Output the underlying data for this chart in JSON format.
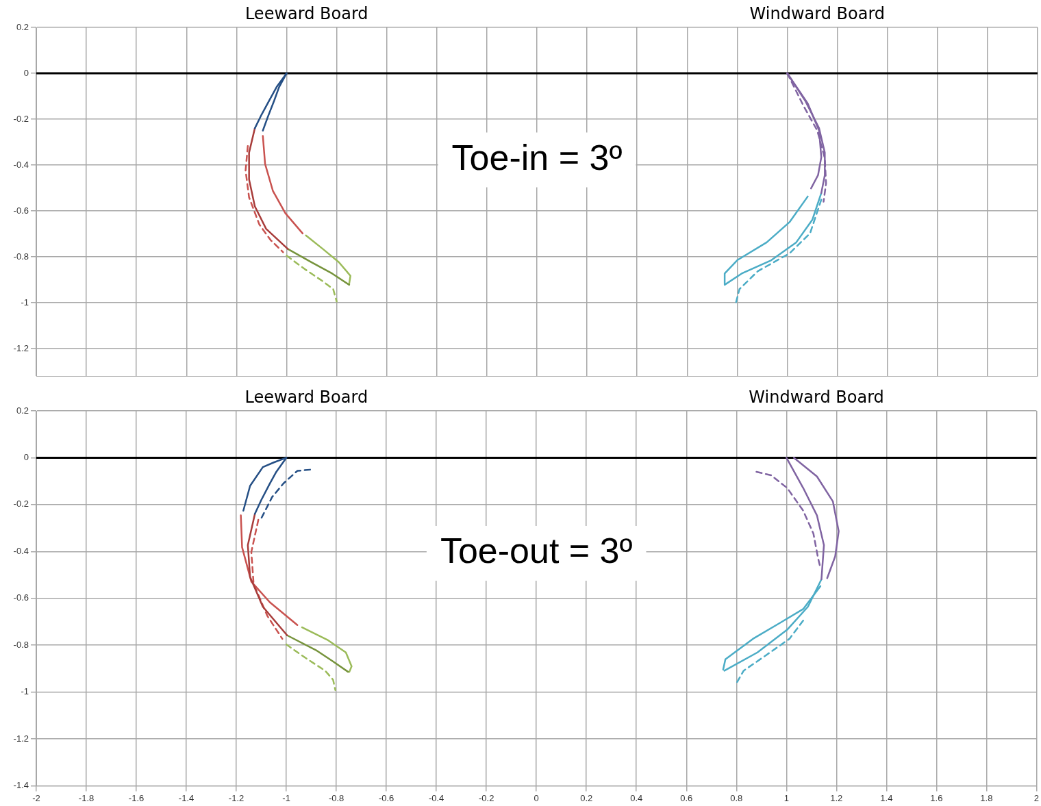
{
  "chart_data": [
    {
      "type": "line",
      "marker": "none",
      "grid": true,
      "legend": false,
      "tick_labels": "y",
      "xlim": [
        -2,
        2
      ],
      "ylim": [
        -1.32,
        0.2
      ],
      "xticks": [
        -2,
        -1.8,
        -1.6,
        -1.4,
        -1.2,
        -1,
        -0.8,
        -0.6,
        -0.4,
        -0.2,
        0,
        0.2,
        0.4,
        0.6,
        0.8,
        1,
        1.2,
        1.4,
        1.6,
        1.8,
        2
      ],
      "yticks": [
        0.2,
        0,
        -0.2,
        -0.4,
        -0.6,
        -0.8,
        -1,
        -1.2
      ],
      "ref_lines": [
        {
          "axis": "y",
          "value": 0,
          "color": "#000000"
        }
      ],
      "annotations": [
        "Leeward Board",
        "Windward Board",
        "Toe-in = 3º"
      ],
      "series": [
        {
          "color": "#254f85",
          "line_style": "solid",
          "x": [
            -1.0,
            -1.04,
            -1.07,
            -1.1,
            -1.127
          ],
          "values": [
            0,
            -0.06,
            -0.12,
            -0.18,
            -0.24
          ]
        },
        {
          "color": "#254f85",
          "line_style": "solid",
          "x": [
            -1.0,
            -1.03,
            -1.05,
            -1.075,
            -1.095
          ],
          "values": [
            0,
            -0.06,
            -0.12,
            -0.19,
            -0.25
          ]
        },
        {
          "color": "#a83c3a",
          "line_style": "solid",
          "x": [
            -1.127,
            -1.15,
            -1.15,
            -1.127,
            -1.082,
            -0.995
          ],
          "values": [
            -0.24,
            -0.346,
            -0.463,
            -0.58,
            -0.678,
            -0.766
          ]
        },
        {
          "color": "#c9524f",
          "line_style": "solid",
          "x": [
            -1.095,
            -1.086,
            -1.055,
            -1.005,
            -0.936
          ],
          "values": [
            -0.273,
            -0.395,
            -0.512,
            -0.61,
            -0.698
          ]
        },
        {
          "color": "#c9524f",
          "line_style": "dashed",
          "x": [
            -1.155,
            -1.164,
            -1.15,
            -1.109,
            -1.064,
            -1.014
          ],
          "values": [
            -0.317,
            -0.424,
            -0.541,
            -0.659,
            -0.727,
            -0.78
          ]
        },
        {
          "color": "#76933c",
          "line_style": "solid",
          "x": [
            -0.995,
            -0.9,
            -0.818,
            -0.75
          ],
          "values": [
            -0.766,
            -0.824,
            -0.873,
            -0.922
          ]
        },
        {
          "color": "#9bbb59",
          "line_style": "solid",
          "x": [
            -0.923,
            -0.855,
            -0.791,
            -0.745,
            -0.75
          ],
          "values": [
            -0.707,
            -0.766,
            -0.824,
            -0.883,
            -0.917
          ]
        },
        {
          "color": "#9bbb59",
          "line_style": "dashed",
          "x": [
            -1.0,
            -0.927,
            -0.855,
            -0.814,
            -0.8
          ],
          "values": [
            -0.795,
            -0.854,
            -0.907,
            -0.941,
            -0.995
          ]
        },
        {
          "color": "#8064a2",
          "line_style": "solid",
          "x": [
            1.0,
            1.073,
            1.127,
            1.15,
            1.15,
            1.136
          ],
          "values": [
            0,
            -0.122,
            -0.239,
            -0.346,
            -0.444,
            -0.522
          ]
        },
        {
          "color": "#8064a2",
          "line_style": "solid",
          "x": [
            1.0,
            1.082,
            1.127,
            1.136,
            1.123,
            1.095
          ],
          "values": [
            0,
            -0.132,
            -0.249,
            -0.366,
            -0.444,
            -0.502
          ]
        },
        {
          "color": "#8064a2",
          "line_style": "dashed",
          "x": [
            1.0,
            1.064,
            1.12,
            1.15,
            1.155,
            1.145
          ],
          "values": [
            0,
            -0.14,
            -0.25,
            -0.37,
            -0.48,
            -0.56
          ]
        },
        {
          "color": "#4bacc6",
          "line_style": "solid",
          "x": [
            1.136,
            1.1,
            1.036,
            0.936,
            0.818,
            0.75
          ],
          "values": [
            -0.522,
            -0.639,
            -0.737,
            -0.815,
            -0.873,
            -0.922
          ]
        },
        {
          "color": "#4bacc6",
          "line_style": "solid",
          "x": [
            1.082,
            1.009,
            0.918,
            0.8,
            0.75,
            0.75
          ],
          "values": [
            -0.537,
            -0.649,
            -0.737,
            -0.815,
            -0.873,
            -0.917
          ]
        },
        {
          "color": "#4bacc6",
          "line_style": "dashed",
          "x": [
            1.136,
            1.091,
            1.009,
            0.882,
            0.809,
            0.795
          ],
          "values": [
            -0.551,
            -0.698,
            -0.785,
            -0.863,
            -0.941,
            -1.0
          ]
        }
      ]
    },
    {
      "type": "line",
      "marker": "none",
      "grid": true,
      "legend": false,
      "xlim": [
        -2,
        2
      ],
      "ylim": [
        -1.4,
        0.2
      ],
      "xticks": [
        -2,
        -1.8,
        -1.6,
        -1.4,
        -1.2,
        -1,
        -0.8,
        -0.6,
        -0.4,
        -0.2,
        0,
        0.2,
        0.4,
        0.6,
        0.8,
        1,
        1.2,
        1.4,
        1.6,
        1.8,
        2
      ],
      "yticks": [
        0.2,
        0,
        -0.2,
        -0.4,
        -0.6,
        -0.8,
        -1,
        -1.2,
        -1.4
      ],
      "ref_lines": [
        {
          "axis": "y",
          "value": 0,
          "color": "#000000"
        }
      ],
      "annotations": [
        "Leeward Board",
        "Windward Board",
        "Toe-out = 3º"
      ],
      "series": [
        {
          "color": "#254f85",
          "line_style": "solid",
          "x": [
            -1.0,
            -1.04,
            -1.066,
            -1.1,
            -1.126
          ],
          "values": [
            0,
            -0.06,
            -0.11,
            -0.18,
            -0.24
          ]
        },
        {
          "color": "#254f85",
          "line_style": "solid",
          "x": [
            -1.0,
            -1.05,
            -1.094,
            -1.145,
            -1.172
          ],
          "values": [
            0,
            -0.02,
            -0.04,
            -0.12,
            -0.226
          ]
        },
        {
          "color": "#254f85",
          "line_style": "dashed",
          "x": [
            -0.905,
            -0.956,
            -1.011,
            -1.057,
            -1.099
          ],
          "values": [
            -0.051,
            -0.056,
            -0.109,
            -0.168,
            -0.256
          ]
        },
        {
          "color": "#a83c3a",
          "line_style": "solid",
          "x": [
            -1.126,
            -1.154,
            -1.145,
            -1.094,
            -0.997
          ],
          "values": [
            -0.241,
            -0.373,
            -0.509,
            -0.636,
            -0.758
          ]
        },
        {
          "color": "#c9524f",
          "line_style": "solid",
          "x": [
            -1.182,
            -1.177,
            -1.14,
            -1.066,
            -0.956
          ],
          "values": [
            -0.246,
            -0.382,
            -0.529,
            -0.617,
            -0.714
          ]
        },
        {
          "color": "#c9524f",
          "line_style": "dashed",
          "x": [
            -1.112,
            -1.14,
            -1.131,
            -1.076,
            -1.016
          ],
          "values": [
            -0.265,
            -0.402,
            -0.538,
            -0.675,
            -0.773
          ]
        },
        {
          "color": "#76933c",
          "line_style": "solid",
          "x": [
            -0.997,
            -0.882,
            -0.818,
            -0.753
          ],
          "values": [
            -0.758,
            -0.821,
            -0.866,
            -0.914
          ]
        },
        {
          "color": "#9bbb59",
          "line_style": "solid",
          "x": [
            -0.937,
            -0.836,
            -0.762,
            -0.739,
            -0.748
          ],
          "values": [
            -0.724,
            -0.777,
            -0.831,
            -0.89,
            -0.914
          ]
        },
        {
          "color": "#9bbb59",
          "line_style": "dashed",
          "x": [
            -1.0,
            -0.928,
            -0.845,
            -0.813,
            -0.804
          ],
          "values": [
            -0.797,
            -0.851,
            -0.909,
            -0.948,
            -0.992
          ]
        },
        {
          "color": "#8064a2",
          "line_style": "solid",
          "x": [
            1.0,
            1.067,
            1.122,
            1.15,
            1.14
          ],
          "values": [
            0,
            -0.129,
            -0.246,
            -0.373,
            -0.519
          ]
        },
        {
          "color": "#8064a2",
          "line_style": "solid",
          "x": [
            1.03,
            1.122,
            1.186,
            1.209,
            1.195,
            1.163
          ],
          "values": [
            0,
            -0.08,
            -0.187,
            -0.314,
            -0.421,
            -0.514
          ]
        },
        {
          "color": "#8064a2",
          "line_style": "dashed",
          "x": [
            0.88,
            0.939,
            1.003,
            1.067,
            1.108,
            1.127,
            1.136
          ],
          "values": [
            -0.06,
            -0.075,
            -0.129,
            -0.226,
            -0.324,
            -0.431,
            -0.47
          ]
        },
        {
          "color": "#4bacc6",
          "line_style": "solid",
          "x": [
            1.14,
            1.086,
            1.003,
            0.884,
            0.752
          ],
          "values": [
            -0.519,
            -0.636,
            -0.734,
            -0.831,
            -0.909
          ]
        },
        {
          "color": "#4bacc6",
          "line_style": "solid",
          "x": [
            1.136,
            1.067,
            0.976,
            0.866,
            0.756,
            0.747
          ],
          "values": [
            -0.548,
            -0.646,
            -0.704,
            -0.773,
            -0.86,
            -0.904
          ]
        },
        {
          "color": "#4bacc6",
          "line_style": "dashed",
          "x": [
            1.067,
            1.012,
            0.921,
            0.829,
            0.797
          ],
          "values": [
            -0.695,
            -0.773,
            -0.841,
            -0.909,
            -0.968
          ]
        }
      ]
    }
  ]
}
